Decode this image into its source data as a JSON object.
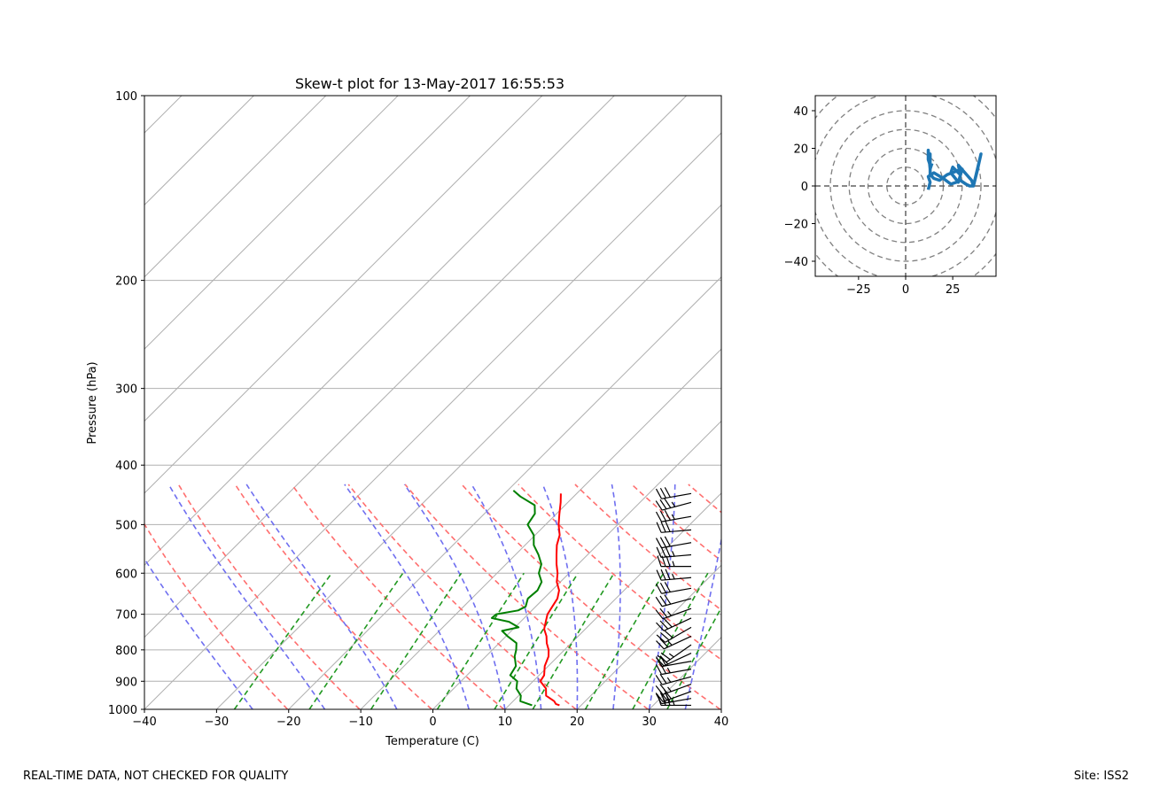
{
  "footer": {
    "left": "REAL-TIME DATA, NOT CHECKED FOR QUALITY",
    "right": "Site: ISS2"
  },
  "colors": {
    "temperature": "#ff0000",
    "dewpoint": "#008000",
    "dry_adiabat": "#ff6f6f",
    "moist_adiabat": "#6f6ff0",
    "mixing_ratio": "#229922",
    "hodograph": "#1f77b4",
    "grid": "#b0b0b0"
  },
  "chart_data": [
    {
      "type": "line",
      "name": "skew-t",
      "title": "Skew-t plot for 13-May-2017 16:55:53",
      "xlabel": "Temperature (C)",
      "ylabel": "Pressure (hPa)",
      "xlim": [
        -40,
        40
      ],
      "ylim": [
        1000,
        100
      ],
      "yscale": "log",
      "skew_label": "45-degree isotherms",
      "xticks": [
        -40,
        -30,
        -20,
        -10,
        0,
        10,
        20,
        30,
        40
      ],
      "xtick_labels": [
        "−40",
        "−30",
        "−20",
        "−10",
        "0",
        "10",
        "20",
        "30",
        "40"
      ],
      "yticks": [
        1000,
        900,
        800,
        700,
        600,
        500,
        400,
        300,
        200,
        100
      ],
      "ytick_labels": [
        "1000",
        "900",
        "800",
        "700",
        "600",
        "500",
        "400",
        "300",
        "200",
        "100"
      ],
      "series": [
        {
          "name": "Temperature",
          "pressure": [
            985,
            980,
            970,
            950,
            925,
            900,
            880,
            850,
            820,
            800,
            780,
            760,
            740,
            720,
            700,
            680,
            660,
            640,
            620,
            600,
            580,
            560,
            540,
            520,
            500,
            480,
            460,
            445
          ],
          "values": [
            17.0,
            16.3,
            15.7,
            13.8,
            12.8,
            11.0,
            10.7,
            9.5,
            8.7,
            7.8,
            6.6,
            5.6,
            4.3,
            3.5,
            2.7,
            2.3,
            1.9,
            1.0,
            -0.5,
            -1.6,
            -3.0,
            -4.3,
            -5.6,
            -6.6,
            -8.2,
            -9.6,
            -11.0,
            -12.2
          ]
        },
        {
          "name": "Dewpoint",
          "pressure": [
            985,
            970,
            950,
            925,
            900,
            880,
            850,
            820,
            800,
            780,
            760,
            745,
            735,
            720,
            710,
            700,
            690,
            680,
            660,
            640,
            620,
            600,
            580,
            560,
            540,
            520,
            500,
            480,
            465,
            450,
            440
          ],
          "values": [
            13.2,
            11.0,
            10.3,
            8.7,
            7.8,
            6.0,
            5.5,
            4.0,
            3.3,
            2.4,
            0.2,
            -1.3,
            0.5,
            -1.6,
            -4.5,
            -4.4,
            -1.9,
            -1.4,
            -2.2,
            -2.0,
            -2.6,
            -4.2,
            -5.1,
            -6.8,
            -8.8,
            -10.2,
            -12.5,
            -13.0,
            -14.2,
            -17.4,
            -19.2
          ]
        }
      ],
      "dry_adiabats_potential_temp_K": [
        253,
        263,
        273,
        283,
        293,
        303,
        313,
        323,
        333,
        343,
        353,
        363
      ],
      "moist_adiabats_start_C": [
        -25,
        -15,
        -5,
        5,
        10,
        15,
        20,
        25,
        30,
        35
      ],
      "mixing_ratios_g_per_kg": [
        0.4,
        1,
        2,
        4,
        7,
        10,
        16,
        24,
        32
      ],
      "wind_barbs": [
        {
          "pressure": 985,
          "speed_kt": 35,
          "dir_deg": 270
        },
        {
          "pressure": 960,
          "speed_kt": 30,
          "dir_deg": 260
        },
        {
          "pressure": 935,
          "speed_kt": 30,
          "dir_deg": 250
        },
        {
          "pressure": 910,
          "speed_kt": 25,
          "dir_deg": 250
        },
        {
          "pressure": 885,
          "speed_kt": 25,
          "dir_deg": 255
        },
        {
          "pressure": 860,
          "speed_kt": 25,
          "dir_deg": 260
        },
        {
          "pressure": 835,
          "speed_kt": 20,
          "dir_deg": 260
        },
        {
          "pressure": 810,
          "speed_kt": 20,
          "dir_deg": 245
        },
        {
          "pressure": 785,
          "speed_kt": 25,
          "dir_deg": 235
        },
        {
          "pressure": 760,
          "speed_kt": 25,
          "dir_deg": 245
        },
        {
          "pressure": 735,
          "speed_kt": 30,
          "dir_deg": 240
        },
        {
          "pressure": 710,
          "speed_kt": 30,
          "dir_deg": 245
        },
        {
          "pressure": 685,
          "speed_kt": 25,
          "dir_deg": 250
        },
        {
          "pressure": 660,
          "speed_kt": 30,
          "dir_deg": 255
        },
        {
          "pressure": 635,
          "speed_kt": 30,
          "dir_deg": 260
        },
        {
          "pressure": 610,
          "speed_kt": 35,
          "dir_deg": 265
        },
        {
          "pressure": 585,
          "speed_kt": 35,
          "dir_deg": 270
        },
        {
          "pressure": 560,
          "speed_kt": 35,
          "dir_deg": 265
        },
        {
          "pressure": 535,
          "speed_kt": 30,
          "dir_deg": 260
        },
        {
          "pressure": 510,
          "speed_kt": 30,
          "dir_deg": 265
        },
        {
          "pressure": 485,
          "speed_kt": 35,
          "dir_deg": 260
        },
        {
          "pressure": 460,
          "speed_kt": 35,
          "dir_deg": 255
        },
        {
          "pressure": 445,
          "speed_kt": 30,
          "dir_deg": 260
        }
      ]
    },
    {
      "type": "line",
      "name": "hodograph",
      "xlim": [
        -48,
        48
      ],
      "ylim": [
        -48,
        48
      ],
      "xticks": [
        -25,
        0,
        25
      ],
      "xtick_labels": [
        "−25",
        "0",
        "25"
      ],
      "yticks": [
        40,
        20,
        0,
        -20,
        -40
      ],
      "ytick_labels": [
        "40",
        "20",
        "0",
        "−20",
        "−40"
      ],
      "rings": [
        10,
        20,
        30,
        40,
        50,
        60
      ],
      "u": [
        12,
        13,
        12,
        15,
        20,
        24,
        27,
        29,
        32,
        34,
        36,
        38,
        40,
        36,
        35,
        28,
        29,
        25,
        24,
        28,
        30,
        22,
        18,
        15,
        13,
        13,
        13,
        12,
        12,
        13,
        14
      ],
      "v": [
        -2,
        2,
        5,
        7,
        4,
        1,
        2,
        3,
        1,
        0,
        0,
        8,
        17,
        0,
        3,
        11,
        6,
        10,
        7,
        2,
        9,
        6,
        3,
        4,
        6,
        17,
        11,
        14,
        19,
        9,
        12
      ]
    }
  ]
}
